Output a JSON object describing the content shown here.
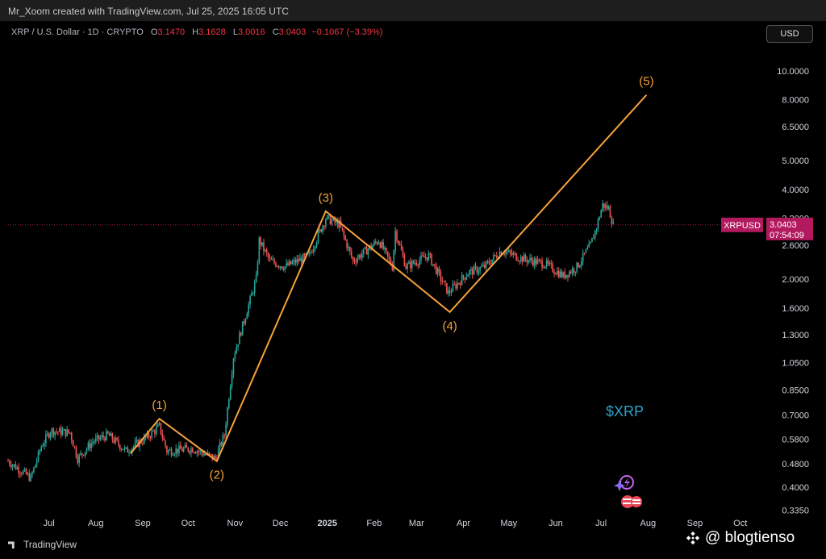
{
  "header": {
    "credit": "Mr_Xoom created with TradingView.com, Jul 25, 2025 16:05 UTC"
  },
  "legend": {
    "symbol": "XRP / U.S. Dollar · 1D · CRYPTO",
    "open_label": "O",
    "open": "3.1470",
    "high_label": "H",
    "high": "3.1628",
    "low_label": "L",
    "low": "3.0016",
    "close_label": "C",
    "close": "3.0403",
    "change": "−0.1067 (−3.39%)"
  },
  "currency_button": "USD",
  "price_tag": {
    "symbol": "XRPUSD",
    "price": "3.0403",
    "countdown": "07:54:09"
  },
  "annotation_text": "$XRP",
  "footer": {
    "brand": "TradingView",
    "watermark": "@ blogtienso"
  },
  "colors": {
    "up": "#26a69a",
    "down": "#ef5350",
    "wave": "#f7a23b",
    "tag_bg": "#b2195e",
    "ticker_text": "#29a3c9"
  },
  "chart_data": {
    "type": "candlestick",
    "scale": "log",
    "ylim": [
      0.32,
      12.5
    ],
    "y_ticks": [
      "10.0000",
      "8.0000",
      "6.5000",
      "5.0000",
      "4.0000",
      "3.2000",
      "2.6000",
      "2.0000",
      "1.6000",
      "1.3000",
      "1.0500",
      "0.8500",
      "0.7000",
      "0.5800",
      "0.4800",
      "0.4000",
      "0.3350"
    ],
    "x_ticks": [
      "Jul",
      "Aug",
      "Sep",
      "Oct",
      "Nov",
      "Dec",
      "2025",
      "Feb",
      "Mar",
      "Apr",
      "May",
      "Jun",
      "Jul",
      "Aug",
      "Sep",
      "Oct"
    ],
    "x_range": [
      "2024-06-20",
      "2025-10-31"
    ],
    "last_price": 3.0403,
    "price_path": [
      [
        "2024-06-20",
        0.49
      ],
      [
        "2024-07-05",
        0.43
      ],
      [
        "2024-07-12",
        0.55
      ],
      [
        "2024-07-18",
        0.62
      ],
      [
        "2024-07-31",
        0.61
      ],
      [
        "2024-08-05",
        0.5
      ],
      [
        "2024-08-15",
        0.57
      ],
      [
        "2024-08-25",
        0.6
      ],
      [
        "2024-09-06",
        0.53
      ],
      [
        "2024-09-20",
        0.59
      ],
      [
        "2024-09-28",
        0.64
      ],
      [
        "2024-10-03",
        0.53
      ],
      [
        "2024-10-20",
        0.54
      ],
      [
        "2024-11-04",
        0.5
      ],
      [
        "2024-11-10",
        0.6
      ],
      [
        "2024-11-16",
        1.1
      ],
      [
        "2024-11-23",
        1.45
      ],
      [
        "2024-12-01",
        2.0
      ],
      [
        "2024-12-03",
        2.7
      ],
      [
        "2024-12-10",
        2.3
      ],
      [
        "2024-12-20",
        2.2
      ],
      [
        "2025-01-05",
        2.4
      ],
      [
        "2025-01-16",
        3.2
      ],
      [
        "2025-01-25",
        3.05
      ],
      [
        "2025-02-03",
        2.3
      ],
      [
        "2025-02-20",
        2.7
      ],
      [
        "2025-03-01",
        2.2
      ],
      [
        "2025-03-03",
        2.9
      ],
      [
        "2025-03-10",
        2.2
      ],
      [
        "2025-03-25",
        2.4
      ],
      [
        "2025-04-07",
        1.8
      ],
      [
        "2025-04-20",
        2.1
      ],
      [
        "2025-05-01",
        2.2
      ],
      [
        "2025-05-12",
        2.5
      ],
      [
        "2025-05-25",
        2.35
      ],
      [
        "2025-06-10",
        2.25
      ],
      [
        "2025-06-22",
        2.05
      ],
      [
        "2025-07-01",
        2.2
      ],
      [
        "2025-07-10",
        2.6
      ],
      [
        "2025-07-14",
        3.0
      ],
      [
        "2025-07-18",
        3.55
      ],
      [
        "2025-07-22",
        3.45
      ],
      [
        "2025-07-25",
        3.04
      ]
    ],
    "wave_points": [
      {
        "label": "",
        "date": "2024-09-09",
        "price": 0.52
      },
      {
        "label": "(1)",
        "date": "2024-09-28",
        "price": 0.68
      },
      {
        "label": "(2)",
        "date": "2024-11-05",
        "price": 0.49
      },
      {
        "label": "(3)",
        "date": "2025-01-16",
        "price": 3.38
      },
      {
        "label": "(4)",
        "date": "2025-04-08",
        "price": 1.55
      },
      {
        "label": "(5)",
        "date": "2025-08-16",
        "price": 8.3
      }
    ]
  }
}
